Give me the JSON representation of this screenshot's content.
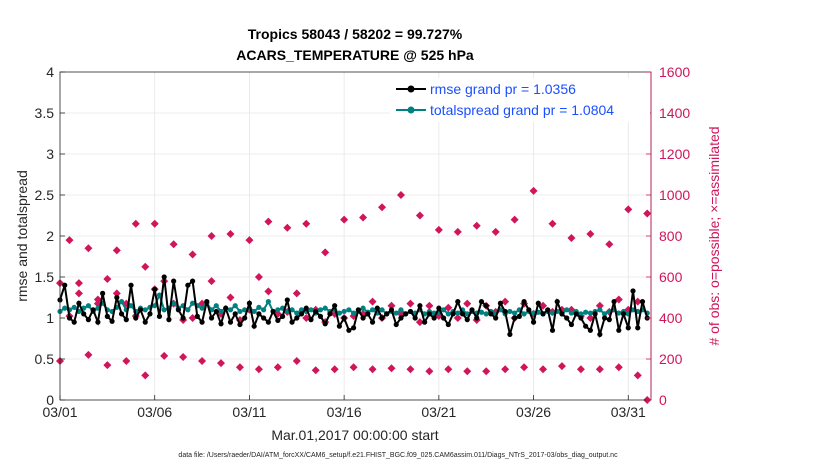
{
  "chart_data": {
    "type": "line",
    "title": "Tropics 58043 / 58202 = 99.727%",
    "subtitle": "ACARS_TEMPERATURE @ 525 hPa",
    "xlabel": "Mar.01,2017 00:00:00 start",
    "ylabel": "rmse and totalspread",
    "ylabel_right": "# of obs: o=possible; ×=assimilated",
    "xlim": [
      0,
      31.2
    ],
    "ylim": [
      0,
      4
    ],
    "ylim_right": [
      0,
      1600
    ],
    "x_ticks": [
      0,
      5,
      10,
      15,
      20,
      25,
      30
    ],
    "x_tick_labels": [
      "03/01",
      "03/06",
      "03/11",
      "03/16",
      "03/21",
      "03/26",
      "03/31"
    ],
    "y_tick_labels": [
      "0",
      "0.5",
      "1",
      "1.5",
      "2",
      "2.5",
      "3",
      "3.5",
      "4"
    ],
    "y_right_tick_labels": [
      "0",
      "200",
      "400",
      "600",
      "800",
      "1000",
      "1200",
      "1400",
      "1600"
    ],
    "grid": true,
    "legend_position": "top-right",
    "series": [
      {
        "name": "rmse grand pr = 1.0356",
        "color": "#000000",
        "axis": "left",
        "x": [
          0,
          0.25,
          0.5,
          0.75,
          1,
          1.25,
          1.5,
          1.75,
          2,
          2.25,
          2.5,
          2.75,
          3,
          3.25,
          3.5,
          3.75,
          4,
          4.25,
          4.5,
          4.75,
          5,
          5.25,
          5.5,
          5.75,
          6,
          6.25,
          6.5,
          6.75,
          7,
          7.25,
          7.5,
          7.75,
          8,
          8.25,
          8.5,
          8.75,
          9,
          9.25,
          9.5,
          9.75,
          10,
          10.25,
          10.5,
          10.75,
          11,
          11.25,
          11.5,
          11.75,
          12,
          12.25,
          12.5,
          12.75,
          13,
          13.25,
          13.5,
          13.75,
          14,
          14.25,
          14.5,
          14.75,
          15,
          15.25,
          15.5,
          15.75,
          16,
          16.25,
          16.5,
          16.75,
          17,
          17.25,
          17.5,
          17.75,
          18,
          18.25,
          18.5,
          18.75,
          19,
          19.25,
          19.5,
          19.75,
          20,
          20.25,
          20.5,
          20.75,
          21,
          21.25,
          21.5,
          21.75,
          22,
          22.25,
          22.5,
          22.75,
          23,
          23.25,
          23.5,
          23.75,
          24,
          24.25,
          24.5,
          24.75,
          25,
          25.25,
          25.5,
          25.75,
          26,
          26.25,
          26.5,
          26.75,
          27,
          27.25,
          27.5,
          27.75,
          28,
          28.25,
          28.5,
          28.75,
          29,
          29.25,
          29.5,
          29.75,
          30,
          30.25,
          30.5,
          30.75,
          31
        ],
        "values": [
          1.22,
          1.4,
          1.0,
          0.95,
          1.18,
          1.05,
          0.98,
          1.1,
          0.95,
          1.3,
          1.02,
          0.96,
          1.25,
          1.05,
          0.98,
          1.4,
          1.0,
          1.1,
          0.95,
          1.05,
          1.35,
          1.02,
          1.5,
          0.98,
          1.45,
          1.1,
          1.0,
          1.4,
          1.45,
          1.02,
          0.95,
          1.2,
          1.0,
          1.08,
          0.93,
          1.12,
          0.95,
          1.05,
          0.92,
          1.0,
          1.18,
          0.9,
          1.05,
          1.0,
          0.95,
          1.08,
          0.97,
          1.02,
          1.22,
          0.95,
          1.0,
          1.05,
          1.12,
          0.98,
          1.08,
          1.02,
          0.93,
          1.05,
          1.15,
          0.9,
          1.0,
          0.85,
          0.88,
          1.1,
          1.0,
          1.05,
          0.95,
          1.12,
          1.0,
          1.05,
          1.1,
          0.92,
          1.0,
          1.05,
          1.08,
          1.0,
          1.15,
          0.95,
          1.05,
          1.0,
          1.12,
          1.0,
          0.92,
          1.05,
          1.2,
          1.05,
          0.98,
          1.1,
          1.0,
          1.2,
          1.15,
          1.05,
          1.0,
          1.18,
          1.08,
          0.8,
          1.0,
          1.02,
          1.2,
          1.1,
          0.95,
          1.18,
          1.05,
          1.1,
          0.85,
          1.2,
          1.05,
          1.0,
          0.92,
          1.05,
          1.0,
          0.9,
          0.85,
          1.05,
          0.8,
          1.0,
          0.98,
          1.2,
          0.85,
          1.05,
          0.88,
          1.33,
          0.88,
          1.2,
          1.0
        ]
      },
      {
        "name": "totalspread grand pr = 1.0804",
        "color": "#008080",
        "axis": "left",
        "x": [
          0,
          0.25,
          0.5,
          0.75,
          1,
          1.25,
          1.5,
          1.75,
          2,
          2.25,
          2.5,
          2.75,
          3,
          3.25,
          3.5,
          3.75,
          4,
          4.25,
          4.5,
          4.75,
          5,
          5.25,
          5.5,
          5.75,
          6,
          6.25,
          6.5,
          6.75,
          7,
          7.25,
          7.5,
          7.75,
          8,
          8.25,
          8.5,
          8.75,
          9,
          9.25,
          9.5,
          9.75,
          10,
          10.25,
          10.5,
          10.75,
          11,
          11.25,
          11.5,
          11.75,
          12,
          12.25,
          12.5,
          12.75,
          13,
          13.25,
          13.5,
          13.75,
          14,
          14.25,
          14.5,
          14.75,
          15,
          15.25,
          15.5,
          15.75,
          16,
          16.25,
          16.5,
          16.75,
          17,
          17.25,
          17.5,
          17.75,
          18,
          18.25,
          18.5,
          18.75,
          19,
          19.25,
          19.5,
          19.75,
          20,
          20.25,
          20.5,
          20.75,
          21,
          21.25,
          21.5,
          21.75,
          22,
          22.25,
          22.5,
          22.75,
          23,
          23.25,
          23.5,
          23.75,
          24,
          24.25,
          24.5,
          24.75,
          25,
          25.25,
          25.5,
          25.75,
          26,
          26.25,
          26.5,
          26.75,
          27,
          27.25,
          27.5,
          27.75,
          28,
          28.25,
          28.5,
          28.75,
          29,
          29.25,
          29.5,
          29.75,
          30,
          30.25,
          30.5,
          30.75,
          31
        ],
        "values": [
          1.08,
          1.12,
          1.1,
          1.13,
          1.08,
          1.12,
          1.15,
          1.08,
          1.12,
          1.18,
          1.1,
          1.08,
          1.13,
          1.2,
          1.1,
          1.15,
          1.08,
          1.12,
          1.1,
          1.13,
          1.15,
          1.28,
          1.1,
          1.12,
          1.18,
          1.12,
          1.15,
          1.1,
          1.18,
          1.15,
          1.12,
          1.18,
          1.1,
          1.15,
          1.08,
          1.12,
          1.1,
          1.15,
          1.08,
          1.1,
          1.12,
          1.08,
          1.13,
          1.1,
          1.2,
          1.08,
          1.1,
          1.12,
          1.08,
          1.1,
          1.06,
          1.1,
          1.08,
          1.1,
          1.06,
          1.1,
          1.12,
          1.08,
          1.1,
          1.06,
          1.08,
          1.1,
          1.06,
          1.08,
          1.12,
          1.07,
          1.1,
          1.06,
          1.1,
          1.05,
          1.08,
          1.06,
          1.1,
          1.05,
          1.08,
          1.06,
          1.1,
          1.05,
          1.08,
          1.06,
          1.07,
          1.1,
          1.05,
          1.08,
          1.06,
          1.1,
          1.05,
          1.08,
          1.06,
          1.07,
          1.05,
          1.08,
          1.06,
          1.1,
          1.05,
          1.08,
          1.06,
          1.1,
          1.05,
          1.08,
          1.06,
          1.07,
          1.05,
          1.08,
          1.06,
          1.08,
          1.05,
          1.1,
          1.06,
          1.08,
          1.05,
          1.07,
          1.06,
          1.08,
          1.1,
          1.05,
          1.08,
          1.1,
          1.06,
          1.08,
          1.05,
          1.1,
          1.08,
          1.1,
          1.06
        ]
      },
      {
        "name": "possible",
        "color": "#d0155a",
        "axis": "right",
        "x": [
          0,
          0.5,
          1,
          1.5,
          2,
          2.5,
          3,
          3.5,
          4,
          4.5,
          5,
          5.5,
          6,
          6.5,
          7,
          7.5,
          8,
          8.5,
          9,
          9.5,
          10,
          10.5,
          11,
          11.5,
          12,
          12.5,
          13,
          13.5,
          14,
          14.5,
          15,
          15.5,
          16,
          16.5,
          17,
          17.5,
          18,
          18.5,
          19,
          19.5,
          20,
          20.5,
          21,
          21.5,
          22,
          22.5,
          23,
          23.5,
          24,
          24.5,
          25,
          25.5,
          26,
          26.5,
          27,
          27.5,
          28,
          28.5,
          29,
          29.5,
          30,
          30.5,
          31
        ],
        "values": [
          190,
          410,
          570,
          220,
          490,
          170,
          520,
          190,
          410,
          120,
          540,
          215,
          470,
          210,
          400,
          190,
          580,
          180,
          500,
          160,
          440,
          150,
          530,
          160,
          430,
          190,
          400,
          145,
          380,
          150,
          400,
          160,
          420,
          150,
          400,
          155,
          420,
          150,
          380,
          140,
          410,
          150,
          400,
          140,
          390,
          140,
          430,
          150,
          400,
          160,
          420,
          150,
          430,
          165,
          440,
          150,
          400,
          150,
          430,
          160,
          440,
          120,
          0
        ]
      },
      {
        "name": "assimilated",
        "color": "#d0155a",
        "axis": "right",
        "x": [
          0,
          0.5,
          1,
          1.5,
          2,
          2.5,
          3,
          3.5,
          4,
          4.5,
          5,
          5.5,
          6,
          6.5,
          7,
          7.5,
          8,
          8.5,
          9,
          9.5,
          10,
          10.5,
          11,
          11.5,
          12,
          12.5,
          13,
          13.5,
          14,
          14.5,
          15,
          15.5,
          16,
          16.5,
          17,
          17.5,
          18,
          18.5,
          19,
          19.5,
          20,
          20.5,
          21,
          21.5,
          22,
          22.5,
          23,
          23.5,
          24,
          24.5,
          25,
          25.5,
          26,
          26.5,
          27,
          27.5,
          28,
          28.5,
          29,
          29.5,
          30,
          30.5,
          31
        ],
        "values": [
          570,
          780,
          520,
          740,
          470,
          590,
          730,
          470,
          860,
          650,
          860,
          580,
          760,
          390,
          710,
          470,
          800,
          420,
          810,
          390,
          780,
          600,
          870,
          420,
          840,
          520,
          860,
          440,
          720,
          420,
          880,
          410,
          890,
          480,
          940,
          460,
          1000,
          470,
          900,
          460,
          830,
          450,
          820,
          470,
          850,
          460,
          820,
          480,
          880,
          470,
          1020,
          460,
          860,
          440,
          790,
          410,
          810,
          460,
          760,
          490,
          930,
          480,
          910
        ]
      }
    ],
    "footer": "data file: /Users/raeder/DAI/ATM_forcXX/CAM6_setup/f.e21.FHIST_BGC.f09_025.CAM6assim.011/Diags_NTrS_2017-03/obs_diag_output.nc"
  }
}
